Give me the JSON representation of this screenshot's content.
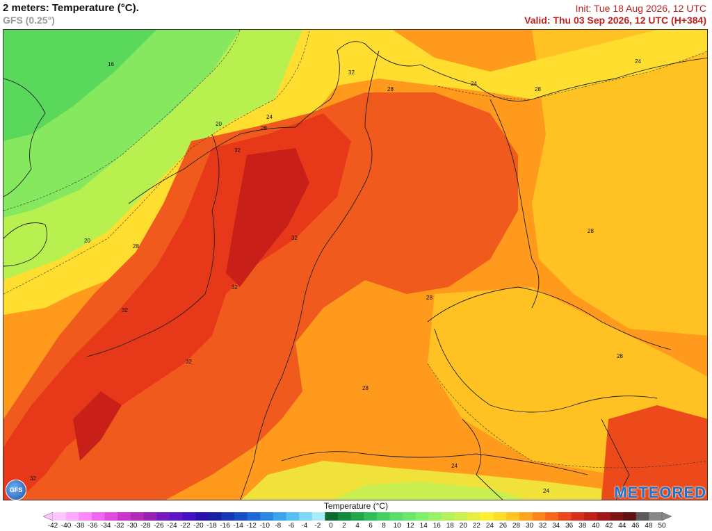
{
  "header": {
    "title": "2 meters: Temperature (°C).",
    "model": "GFS (0.25°)",
    "init": "Init: Tue 18 Aug 2026, 12 UTC",
    "valid": "Valid: Thu 03 Sep 2026, 12 UTC (H+384)"
  },
  "map": {
    "region": "Central Europe",
    "contour_labels": [
      "16",
      "20",
      "20",
      "24",
      "24",
      "24",
      "24",
      "28",
      "28",
      "28",
      "28",
      "28",
      "28",
      "28",
      "28",
      "32",
      "32",
      "32",
      "32",
      "32",
      "32",
      "32",
      "24"
    ]
  },
  "logos": {
    "left": "GFS",
    "right": "METEORED"
  },
  "legend": {
    "title": "Temperature (°C)",
    "ticks": [
      "-42",
      "-40",
      "-38",
      "-36",
      "-34",
      "-32",
      "-30",
      "-28",
      "-26",
      "-24",
      "-22",
      "-20",
      "-18",
      "-16",
      "-14",
      "-12",
      "-10",
      "-8",
      "-6",
      "-4",
      "-2",
      "0",
      "2",
      "4",
      "6",
      "8",
      "10",
      "12",
      "14",
      "16",
      "18",
      "20",
      "22",
      "24",
      "26",
      "28",
      "30",
      "32",
      "34",
      "36",
      "38",
      "40",
      "42",
      "44",
      "46",
      "48",
      "50"
    ],
    "colors": [
      "#ffc6ff",
      "#ffaaff",
      "#ff88ff",
      "#f066f0",
      "#e04ce0",
      "#cc33cc",
      "#b42ab4",
      "#9a20b4",
      "#7a18c0",
      "#5e14c8",
      "#4410c8",
      "#2a10b0",
      "#1822a0",
      "#1638b4",
      "#1650c8",
      "#1c6ad8",
      "#2a88e4",
      "#3aa4ee",
      "#56c0f4",
      "#7cd8f6",
      "#a8ecf8",
      "#0a6a30",
      "#128a3c",
      "#1ea84a",
      "#30be58",
      "#44d062",
      "#58de6a",
      "#6ae86c",
      "#7ef06a",
      "#98f266",
      "#b4f25c",
      "#ccf050",
      "#e6ee40",
      "#fff032",
      "#ffde28",
      "#ffc420",
      "#ffa61c",
      "#ff861a",
      "#f8661a",
      "#ee461a",
      "#d83018",
      "#c02018",
      "#a01818",
      "#801414",
      "#621010",
      "#5a5a5a",
      "#888888"
    ]
  }
}
